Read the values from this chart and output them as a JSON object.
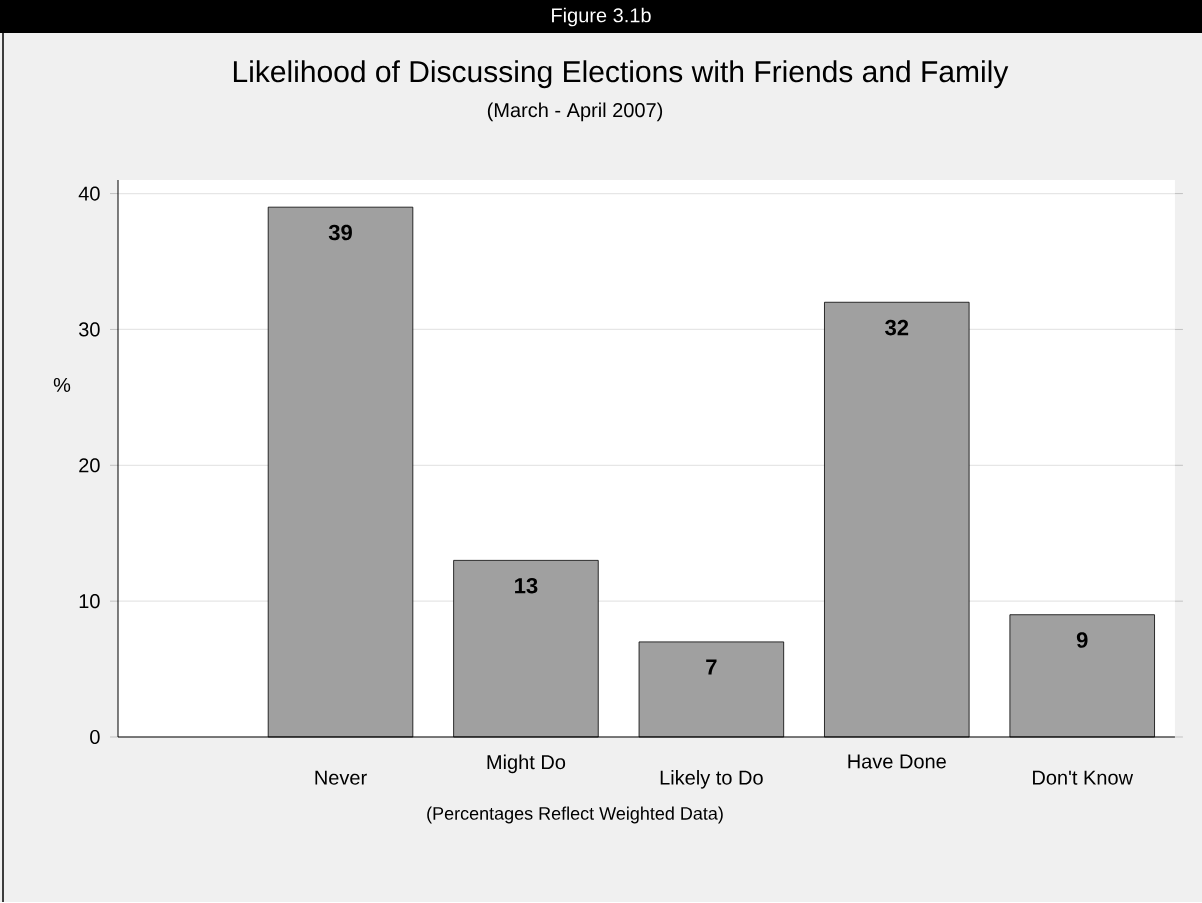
{
  "chart_data": {
    "type": "bar",
    "title": "Likelihood of Discussing Elections with Friends and Family",
    "subtitle": "(March - April 2007)",
    "ylabel": "%",
    "categories": [
      null,
      "Never",
      "Might Do",
      "Likely to Do",
      "Have Done",
      "Don't Know"
    ],
    "values": [
      null,
      39,
      13,
      7,
      32,
      9
    ],
    "color": "#a0a0a0",
    "ylim": [
      0,
      41
    ],
    "yticks": [
      0,
      10,
      20,
      30,
      40
    ],
    "grid": "y",
    "data_labels": true,
    "annotations": [
      "Figure 3.1b",
      "(Percentages Reflect Weighted Data)"
    ]
  }
}
